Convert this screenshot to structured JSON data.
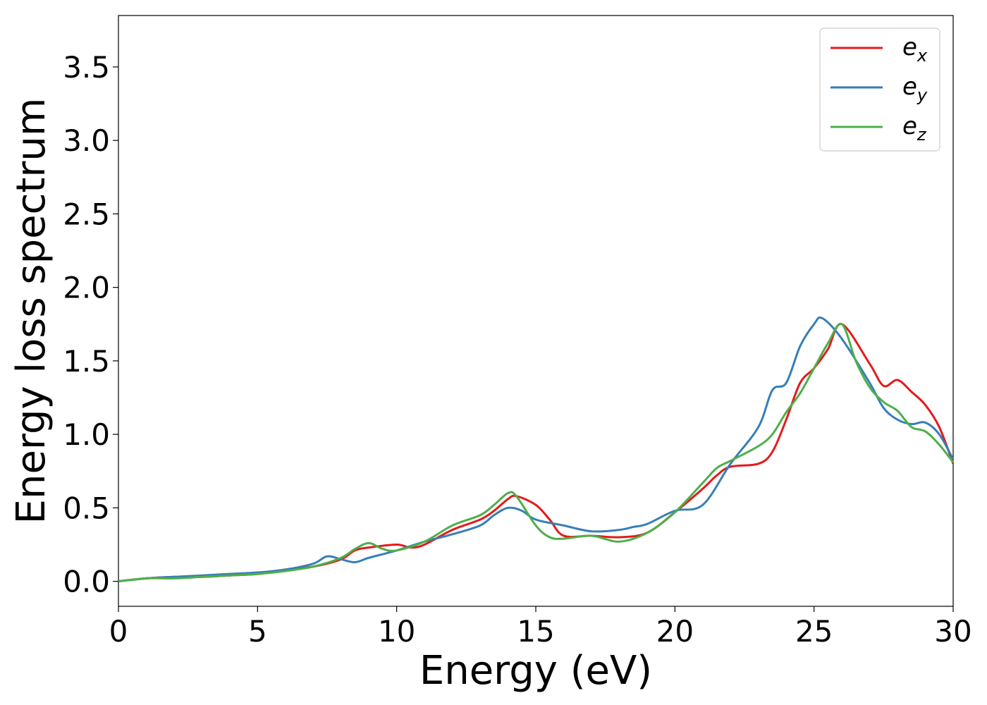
{
  "chart_data": {
    "type": "line",
    "xlabel": "Energy (eV)",
    "ylabel": "Energy loss spectrum",
    "xlim": [
      0,
      30
    ],
    "ylim": [
      -0.17,
      3.85
    ],
    "xticks": [
      0,
      5,
      10,
      15,
      20,
      25,
      30
    ],
    "xtick_labels": [
      "0",
      "5",
      "10",
      "15",
      "20",
      "25",
      "30"
    ],
    "yticks": [
      0.0,
      0.5,
      1.0,
      1.5,
      2.0,
      2.5,
      3.0,
      3.5
    ],
    "ytick_labels": [
      "0.0",
      "0.5",
      "1.0",
      "1.5",
      "2.0",
      "2.5",
      "3.0",
      "3.5"
    ],
    "grid": false,
    "legend_position": "top-right",
    "series": [
      {
        "name": "e",
        "subscript": "x",
        "color": "#e41a1c",
        "x": [
          0,
          1,
          2,
          3,
          4,
          5,
          6,
          7,
          8,
          8.5,
          9,
          10,
          10.5,
          11,
          12,
          13,
          13.5,
          14,
          14.3,
          15,
          15.5,
          16,
          17,
          18,
          19,
          20,
          21,
          21.5,
          22,
          23,
          23.5,
          24,
          24.5,
          25,
          25.5,
          26,
          27,
          27.5,
          28,
          28.5,
          29,
          29.5,
          30
        ],
        "y": [
          0.0,
          0.02,
          0.03,
          0.03,
          0.04,
          0.05,
          0.08,
          0.1,
          0.15,
          0.21,
          0.23,
          0.25,
          0.23,
          0.25,
          0.35,
          0.42,
          0.48,
          0.56,
          0.58,
          0.52,
          0.42,
          0.31,
          0.31,
          0.3,
          0.33,
          0.47,
          0.63,
          0.72,
          0.78,
          0.8,
          0.88,
          1.1,
          1.35,
          1.45,
          1.58,
          1.75,
          1.48,
          1.33,
          1.37,
          1.29,
          1.2,
          1.05,
          0.8
        ]
      },
      {
        "name": "e",
        "subscript": "y",
        "color": "#377eb8",
        "x": [
          0,
          1,
          2,
          3,
          4,
          5,
          6,
          7,
          7.5,
          8,
          8.5,
          9,
          10,
          11,
          12,
          13,
          13.5,
          14,
          14.5,
          15,
          16,
          17,
          18,
          18.5,
          19,
          20,
          21,
          22,
          23,
          23.5,
          24,
          24.5,
          25,
          25.3,
          26,
          27,
          27.5,
          28,
          28.5,
          29,
          29.5,
          30
        ],
        "y": [
          0.0,
          0.02,
          0.03,
          0.04,
          0.05,
          0.06,
          0.08,
          0.12,
          0.17,
          0.15,
          0.13,
          0.16,
          0.21,
          0.27,
          0.32,
          0.38,
          0.45,
          0.5,
          0.48,
          0.42,
          0.38,
          0.34,
          0.35,
          0.37,
          0.39,
          0.48,
          0.52,
          0.8,
          1.05,
          1.3,
          1.35,
          1.6,
          1.75,
          1.79,
          1.65,
          1.35,
          1.18,
          1.1,
          1.07,
          1.08,
          1.0,
          0.83
        ]
      },
      {
        "name": "e",
        "subscript": "z",
        "color": "#4daf4a",
        "x": [
          0,
          1,
          2,
          3,
          4,
          5,
          6,
          7,
          8,
          8.5,
          9,
          9.5,
          10,
          11,
          12,
          13,
          13.5,
          14,
          14.3,
          15,
          15.5,
          16,
          17,
          18,
          19,
          20,
          21,
          21.5,
          22,
          23,
          23.5,
          24,
          24.5,
          25,
          25.5,
          26,
          26.5,
          27,
          27.5,
          28,
          28.5,
          29,
          29.5,
          30
        ],
        "y": [
          0.0,
          0.02,
          0.02,
          0.03,
          0.04,
          0.05,
          0.07,
          0.1,
          0.16,
          0.22,
          0.26,
          0.22,
          0.21,
          0.27,
          0.38,
          0.45,
          0.52,
          0.6,
          0.58,
          0.38,
          0.3,
          0.29,
          0.31,
          0.27,
          0.33,
          0.47,
          0.67,
          0.77,
          0.82,
          0.92,
          1.0,
          1.15,
          1.28,
          1.45,
          1.62,
          1.75,
          1.5,
          1.32,
          1.22,
          1.16,
          1.05,
          1.02,
          0.93,
          0.81
        ]
      }
    ]
  }
}
